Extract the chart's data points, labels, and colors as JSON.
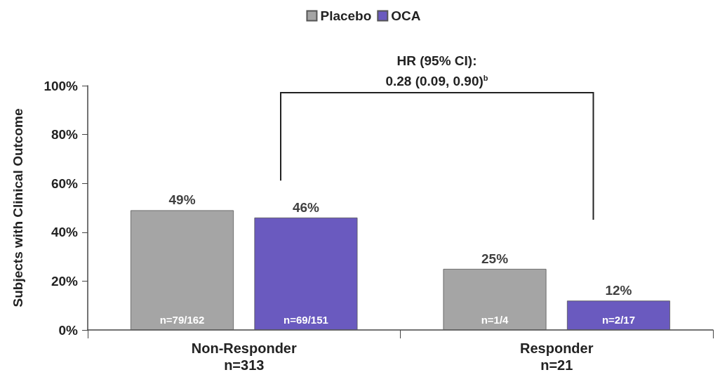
{
  "chart_data": {
    "type": "bar",
    "ylabel": "Subjects with Clinical Outcome",
    "categories": [
      "Non-Responder\nn=313",
      "Responder\nn=21"
    ],
    "series": [
      {
        "name": "Placebo",
        "color": "#a5a5a5",
        "values": [
          49,
          25
        ],
        "value_labels": [
          "49%",
          "25%"
        ]
      },
      {
        "name": "OCA",
        "color": "#6a5abf",
        "values": [
          46,
          12
        ],
        "value_labels": [
          "46%",
          "12%"
        ]
      }
    ],
    "ylim": [
      0,
      100
    ],
    "yticks": [
      {
        "value": 0,
        "label": "0%"
      },
      {
        "value": 20,
        "label": "20%"
      },
      {
        "value": 40,
        "label": "40%"
      },
      {
        "value": 60,
        "label": "60%"
      },
      {
        "value": 80,
        "label": "80%"
      },
      {
        "value": 100,
        "label": "100%"
      }
    ],
    "grid": false,
    "legend": "top",
    "annotations": [
      "n=79/162",
      "n=69/151",
      "n=1/4",
      "n=2/17",
      "HR (95% CI):\n0.28 (0.09, 0.90)$^{b}$"
    ]
  }
}
